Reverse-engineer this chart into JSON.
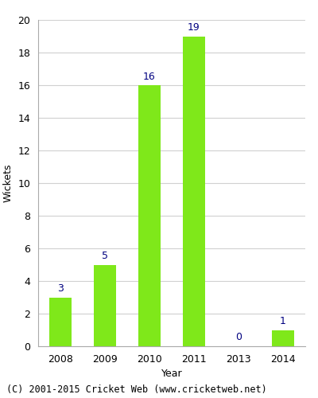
{
  "years": [
    "2008",
    "2009",
    "2010",
    "2011",
    "2013",
    "2014"
  ],
  "values": [
    3,
    5,
    16,
    19,
    0,
    1
  ],
  "bar_color": "#7FE81A",
  "label_color": "#000080",
  "ylabel": "Wickets",
  "xlabel": "Year",
  "ylim": [
    0,
    20
  ],
  "yticks": [
    0,
    2,
    4,
    6,
    8,
    10,
    12,
    14,
    16,
    18,
    20
  ],
  "bg_color": "#ffffff",
  "footer": "(C) 2001-2015 Cricket Web (www.cricketweb.net)",
  "bar_width": 0.5,
  "label_fontsize": 9,
  "axis_fontsize": 9,
  "footer_fontsize": 8.5,
  "grid_color": "#d0d0d0"
}
